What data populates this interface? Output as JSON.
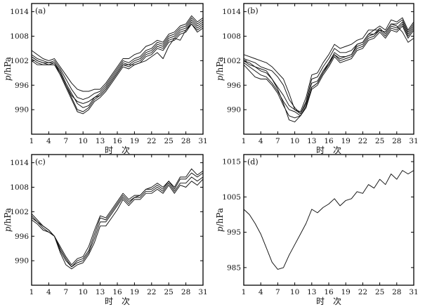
{
  "chart_data": [
    {
      "type": "line",
      "panel_label": "(a)",
      "xlabel": "时　次",
      "ylabel_italic": "p",
      "ylabel_unit": "/hPa",
      "xlim": [
        1,
        31
      ],
      "ylim": [
        984,
        1016
      ],
      "xticks": [
        1,
        4,
        7,
        10,
        13,
        16,
        19,
        22,
        25,
        28,
        31
      ],
      "yticks": [
        990,
        996,
        1002,
        1008,
        1014
      ],
      "x": [
        1,
        2,
        3,
        4,
        5,
        6,
        7,
        8,
        9,
        10,
        11,
        12,
        13,
        14,
        15,
        16,
        17,
        18,
        19,
        20,
        21,
        22,
        23,
        24,
        25,
        26,
        27,
        28,
        29,
        30,
        31
      ],
      "series": [
        {
          "values": [
            1004.5,
            1003.5,
            1002.5,
            1002.0,
            1002.5,
            1000.5,
            998.5,
            996.5,
            995.0,
            994.5,
            994.5,
            995.0,
            995.0,
            996.5,
            998.5,
            1000.5,
            1002.5,
            1002.5,
            1003.5,
            1004.0,
            1005.5,
            1006.0,
            1007.0,
            1006.5,
            1008.5,
            1009.0,
            1010.5,
            1011.0,
            1013.0,
            1011.5,
            1012.5
          ]
        },
        {
          "values": [
            1003.5,
            1002.5,
            1002.0,
            1001.5,
            1002.0,
            1000.0,
            997.5,
            995.0,
            993.0,
            992.5,
            993.0,
            994.0,
            994.5,
            996.0,
            998.0,
            1000.0,
            1002.0,
            1001.5,
            1002.5,
            1003.0,
            1004.5,
            1005.0,
            1006.5,
            1006.0,
            1008.0,
            1008.5,
            1010.0,
            1010.5,
            1012.5,
            1011.0,
            1012.0
          ]
        },
        {
          "values": [
            1003.0,
            1002.0,
            1001.5,
            1001.5,
            1001.5,
            999.5,
            996.5,
            994.0,
            991.5,
            990.5,
            991.0,
            993.0,
            994.0,
            995.5,
            997.5,
            999.5,
            1001.5,
            1001.0,
            1002.0,
            1002.5,
            1004.0,
            1004.5,
            1006.0,
            1005.5,
            1007.5,
            1008.0,
            1009.5,
            1010.0,
            1012.0,
            1010.5,
            1011.5
          ]
        },
        {
          "values": [
            1002.5,
            1001.5,
            1001.0,
            1001.0,
            1001.0,
            999.0,
            996.0,
            993.0,
            990.0,
            989.5,
            990.5,
            992.5,
            993.5,
            995.0,
            997.0,
            999.0,
            1001.0,
            1000.5,
            1001.5,
            1002.0,
            1003.5,
            1004.0,
            1005.5,
            1005.0,
            1007.0,
            1007.5,
            1009.0,
            1009.5,
            1011.5,
            1010.0,
            1011.0
          ]
        },
        {
          "values": [
            1002.0,
            1001.0,
            1001.0,
            1001.0,
            1001.0,
            998.5,
            995.5,
            992.5,
            989.5,
            989.0,
            990.0,
            992.0,
            993.0,
            994.5,
            996.5,
            998.5,
            1000.5,
            1000.0,
            1001.0,
            1001.5,
            1003.0,
            1003.5,
            1005.0,
            1004.5,
            1006.5,
            1007.0,
            1008.5,
            1009.0,
            1011.0,
            1009.5,
            1010.5
          ]
        },
        {
          "values": [
            1003.0,
            1002.0,
            1001.5,
            1001.0,
            1001.5,
            999.0,
            996.0,
            993.5,
            992.0,
            991.5,
            992.0,
            993.0,
            993.5,
            995.0,
            997.0,
            999.0,
            1001.0,
            1001.0,
            1001.0,
            1001.5,
            1002.0,
            1003.0,
            1004.0,
            1002.5,
            1005.5,
            1007.5,
            1007.0,
            1009.5,
            1011.0,
            1009.0,
            1010.0
          ]
        }
      ]
    },
    {
      "type": "line",
      "panel_label": "(b)",
      "xlabel": "时　次",
      "ylabel_italic": "p",
      "ylabel_unit": "/hPa",
      "xlim": [
        1,
        31
      ],
      "ylim": [
        984,
        1016
      ],
      "xticks": [
        1,
        4,
        7,
        10,
        13,
        16,
        19,
        22,
        25,
        28,
        31
      ],
      "yticks": [
        990,
        996,
        1002,
        1008,
        1014
      ],
      "x": [
        1,
        2,
        3,
        4,
        5,
        6,
        7,
        8,
        9,
        10,
        11,
        12,
        13,
        14,
        15,
        16,
        17,
        18,
        19,
        20,
        21,
        22,
        23,
        24,
        25,
        26,
        27,
        28,
        29,
        30,
        31
      ],
      "series": [
        {
          "values": [
            1003.5,
            1003.0,
            1002.5,
            1002.0,
            1001.5,
            1000.5,
            999.0,
            997.5,
            994.0,
            990.0,
            989.5,
            993.0,
            998.5,
            999.0,
            1001.5,
            1003.5,
            1006.0,
            1005.0,
            1005.5,
            1006.0,
            1007.0,
            1007.5,
            1009.5,
            1009.5,
            1010.5,
            1009.5,
            1012.0,
            1011.5,
            1012.5,
            1009.5,
            1011.5
          ]
        },
        {
          "values": [
            1002.5,
            1002.0,
            1001.5,
            1000.5,
            1000.0,
            999.5,
            998.0,
            996.0,
            992.5,
            990.5,
            989.0,
            992.0,
            997.5,
            998.0,
            1000.5,
            1002.5,
            1005.0,
            1004.0,
            1004.0,
            1004.5,
            1006.0,
            1006.5,
            1008.5,
            1008.5,
            1009.5,
            1009.0,
            1011.0,
            1011.0,
            1012.0,
            1009.0,
            1011.0
          ]
        },
        {
          "values": [
            1002.0,
            1001.5,
            1000.5,
            999.5,
            999.0,
            997.5,
            995.5,
            993.5,
            991.0,
            990.0,
            989.0,
            991.5,
            996.5,
            997.0,
            999.5,
            1001.5,
            1004.0,
            1003.0,
            1003.0,
            1003.5,
            1005.5,
            1006.0,
            1008.0,
            1008.5,
            1010.0,
            1008.5,
            1010.5,
            1010.0,
            1011.5,
            1008.5,
            1010.5
          ]
        },
        {
          "values": [
            1001.5,
            1000.5,
            999.5,
            998.5,
            998.0,
            996.5,
            994.5,
            992.0,
            990.0,
            989.5,
            988.5,
            991.0,
            995.5,
            996.5,
            999.0,
            1001.0,
            1003.5,
            1002.0,
            1002.5,
            1003.0,
            1005.0,
            1005.5,
            1007.5,
            1008.0,
            1009.5,
            1008.0,
            1010.0,
            1009.5,
            1011.0,
            1008.0,
            1010.0
          ]
        },
        {
          "values": [
            1001.0,
            999.5,
            998.0,
            997.5,
            997.5,
            996.0,
            994.0,
            991.0,
            988.5,
            988.0,
            988.5,
            990.5,
            995.0,
            996.0,
            998.5,
            1000.5,
            1003.0,
            1001.5,
            1002.0,
            1002.5,
            1004.5,
            1005.0,
            1007.0,
            1007.5,
            1009.0,
            1007.5,
            1009.5,
            1009.0,
            1010.5,
            1007.5,
            1009.5
          ]
        },
        {
          "values": [
            1002.0,
            1001.0,
            1000.5,
            1000.0,
            999.5,
            997.5,
            995.0,
            991.5,
            987.5,
            987.0,
            988.5,
            990.5,
            995.5,
            996.5,
            999.0,
            1001.5,
            1003.5,
            1002.5,
            1003.0,
            1003.5,
            1006.0,
            1006.5,
            1008.5,
            1009.5,
            1009.5,
            1009.0,
            1011.0,
            1010.5,
            1009.0,
            1006.5,
            1007.5
          ]
        }
      ]
    },
    {
      "type": "line",
      "panel_label": "(c)",
      "xlabel": "时　次",
      "ylabel_italic": "p",
      "ylabel_unit": "/hPa",
      "xlim": [
        1,
        31
      ],
      "ylim": [
        984,
        1016
      ],
      "xticks": [
        1,
        4,
        7,
        10,
        13,
        16,
        19,
        22,
        25,
        28,
        31
      ],
      "yticks": [
        990,
        996,
        1002,
        1008,
        1014
      ],
      "x": [
        1,
        2,
        3,
        4,
        5,
        6,
        7,
        8,
        9,
        10,
        11,
        12,
        13,
        14,
        15,
        16,
        17,
        18,
        19,
        20,
        21,
        22,
        23,
        24,
        25,
        26,
        27,
        28,
        29,
        30,
        31
      ],
      "series": [
        {
          "values": [
            1001.5,
            1000.0,
            998.5,
            997.5,
            996.0,
            993.5,
            991.0,
            989.0,
            990.5,
            991.0,
            993.5,
            997.5,
            1001.0,
            1000.5,
            1002.5,
            1004.5,
            1006.5,
            1005.0,
            1006.0,
            1006.0,
            1007.5,
            1008.0,
            1009.0,
            1008.0,
            1009.5,
            1008.0,
            1010.5,
            1010.5,
            1012.5,
            1011.0,
            1012.0
          ]
        },
        {
          "values": [
            1001.0,
            999.5,
            998.5,
            997.5,
            996.0,
            993.0,
            990.5,
            988.5,
            990.0,
            990.5,
            992.5,
            996.5,
            1000.5,
            1000.0,
            1002.0,
            1004.0,
            1006.0,
            1004.5,
            1005.5,
            1006.0,
            1007.5,
            1007.5,
            1008.5,
            1007.5,
            1009.5,
            1007.5,
            1010.0,
            1010.0,
            1011.5,
            1010.5,
            1011.5
          ]
        },
        {
          "values": [
            1000.5,
            999.5,
            998.0,
            997.0,
            996.0,
            992.5,
            990.0,
            988.5,
            989.5,
            990.0,
            992.0,
            995.5,
            999.5,
            999.5,
            1001.5,
            1003.5,
            1005.5,
            1004.0,
            1005.5,
            1005.5,
            1007.0,
            1007.0,
            1008.0,
            1007.0,
            1009.0,
            1007.0,
            1009.0,
            1009.0,
            1010.5,
            1009.5,
            1010.5
          ]
        },
        {
          "values": [
            1000.0,
            999.0,
            997.5,
            997.0,
            996.0,
            992.0,
            989.0,
            988.0,
            989.0,
            989.5,
            991.5,
            994.5,
            998.5,
            998.5,
            1000.5,
            1002.5,
            1005.0,
            1003.5,
            1005.0,
            1005.0,
            1006.5,
            1006.5,
            1007.5,
            1006.5,
            1008.5,
            1006.5,
            1008.5,
            1008.0,
            1009.5,
            1008.5,
            1010.0
          ]
        }
      ]
    },
    {
      "type": "line",
      "panel_label": "(d)",
      "xlabel": "时　次",
      "ylabel_italic": "p",
      "ylabel_unit": "/hPa",
      "xlim": [
        1,
        31
      ],
      "ylim": [
        980,
        1017
      ],
      "xticks": [
        1,
        4,
        7,
        10,
        13,
        16,
        19,
        22,
        25,
        28,
        31
      ],
      "yticks": [
        985,
        995,
        1005,
        1015
      ],
      "x": [
        1,
        2,
        3,
        4,
        5,
        6,
        7,
        8,
        9,
        10,
        11,
        12,
        13,
        14,
        15,
        16,
        17,
        18,
        19,
        20,
        21,
        22,
        23,
        24,
        25,
        26,
        27,
        28,
        29,
        30,
        31
      ],
      "series": [
        {
          "values": [
            1001.5,
            1000.0,
            997.5,
            994.5,
            990.5,
            986.5,
            984.5,
            985.0,
            988.5,
            991.5,
            994.5,
            997.5,
            1001.5,
            1000.5,
            1002.0,
            1003.0,
            1004.5,
            1002.5,
            1004.0,
            1004.5,
            1006.5,
            1006.0,
            1008.5,
            1007.5,
            1010.0,
            1008.5,
            1011.5,
            1010.0,
            1012.5,
            1011.5,
            1012.5
          ]
        }
      ]
    }
  ]
}
